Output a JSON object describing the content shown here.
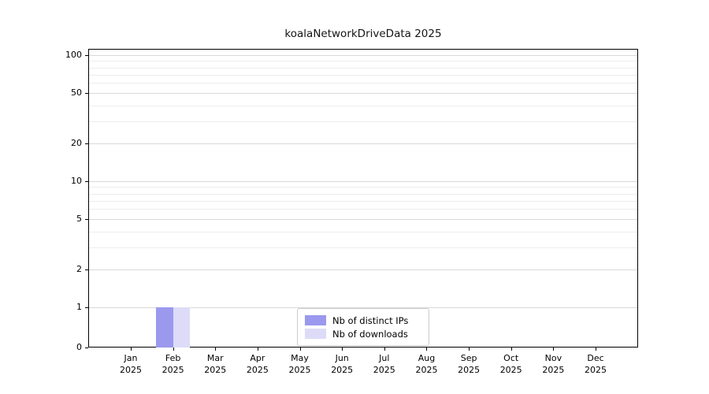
{
  "chart_data": {
    "type": "bar",
    "title": "koalaNetworkDriveData 2025",
    "categories": [
      "Jan",
      "Feb",
      "Mar",
      "Apr",
      "May",
      "Jun",
      "Jul",
      "Aug",
      "Sep",
      "Oct",
      "Nov",
      "Dec"
    ],
    "category_year": "2025",
    "series": [
      {
        "name": "Nb of distinct IPs",
        "color": "#9a99ee",
        "values": [
          0,
          1,
          0,
          0,
          0,
          0,
          0,
          0,
          0,
          0,
          0,
          0
        ]
      },
      {
        "name": "Nb of downloads",
        "color": "#dcdcf8",
        "values": [
          0,
          1,
          0,
          0,
          0,
          0,
          0,
          0,
          0,
          0,
          0,
          0
        ]
      }
    ],
    "y_ticks": [
      0,
      1,
      2,
      5,
      10,
      20,
      50,
      100
    ],
    "y_minor_ticks": [
      3,
      4,
      6,
      7,
      8,
      9,
      30,
      40,
      60,
      70,
      80,
      90
    ],
    "y_scale": "symlog",
    "ylim": [
      0,
      112
    ],
    "xlabel": "",
    "ylabel": "",
    "grid": "horizontal",
    "legend": {
      "position": "lower center",
      "entries": [
        "Nb of distinct IPs",
        "Nb of downloads"
      ]
    }
  }
}
